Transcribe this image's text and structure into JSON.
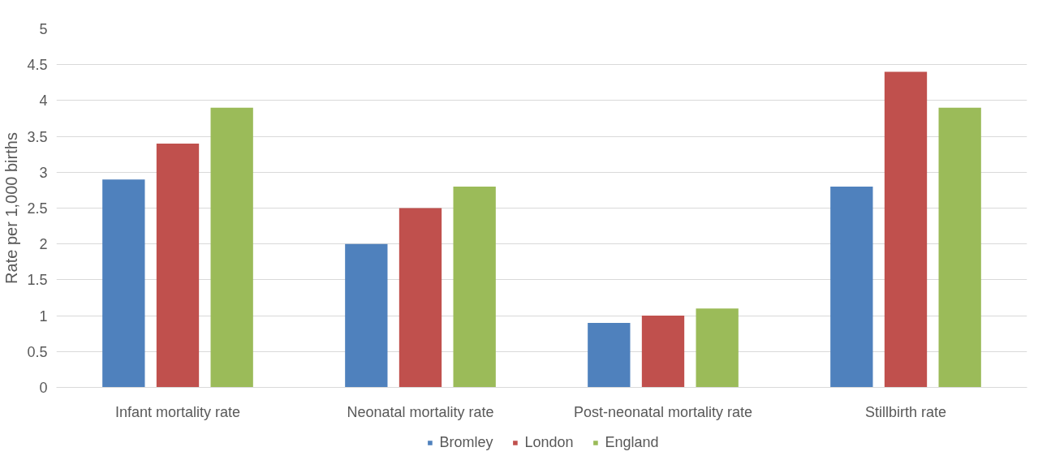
{
  "chart_data": {
    "type": "bar",
    "ylabel": "Rate per 1,000 births",
    "categories": [
      "Infant mortality rate",
      "Neonatal mortality rate",
      "Post-neonatal mortality rate",
      "Stillbirth rate"
    ],
    "series": [
      {
        "name": "Bromley",
        "color": "#4f81bd",
        "values": [
          2.9,
          2.0,
          0.9,
          2.8
        ]
      },
      {
        "name": "London",
        "color": "#c0504d",
        "values": [
          3.4,
          2.5,
          1.0,
          4.4
        ]
      },
      {
        "name": "England",
        "color": "#9bbb59",
        "values": [
          3.9,
          2.8,
          1.1,
          3.9
        ]
      }
    ],
    "ylim": [
      0,
      5
    ],
    "yticks": [
      0,
      0.5,
      1,
      1.5,
      2,
      2.5,
      3,
      3.5,
      4,
      4.5,
      5
    ],
    "grid": "y",
    "legend": "bottom"
  }
}
